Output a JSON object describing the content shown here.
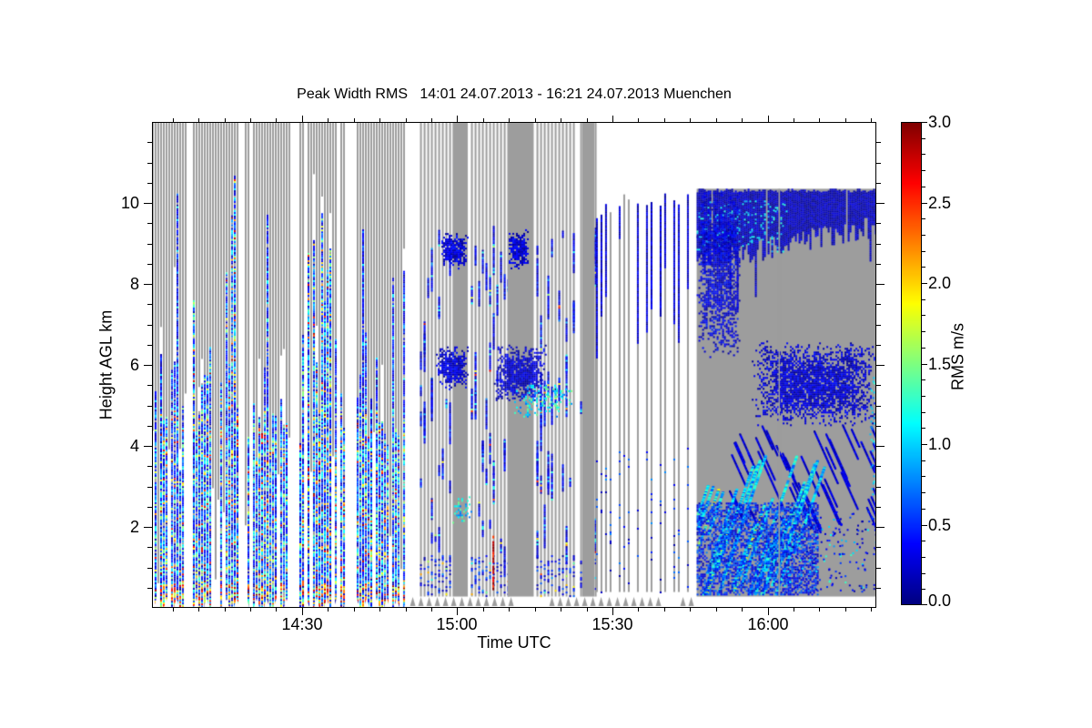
{
  "chart_data": {
    "type": "heatmap",
    "title": "Peak Width RMS   14:01 24.07.2013 - 16:21 24.07.2013 Muenchen",
    "xlabel": "Time UTC",
    "ylabel": "Height AGL km",
    "x_axis": {
      "start": "14:01",
      "end": "16:21",
      "total_minutes": 140,
      "tick_labels": [
        "14:30",
        "15:00",
        "15:30",
        "16:00"
      ],
      "tick_minutes_from_start": [
        29,
        59,
        89,
        119
      ],
      "minor_tick_step_minutes": 5
    },
    "y_axis": {
      "min_km": 0,
      "max_km": 12,
      "tick_labels": [
        "2",
        "4",
        "6",
        "8",
        "10"
      ],
      "tick_values_km": [
        2,
        4,
        6,
        8,
        10
      ],
      "minor_tick_step_km": 0.5
    },
    "colorbar": {
      "label": "RMS m/s",
      "min": 0.0,
      "max": 3.0,
      "tick_labels": [
        "0.0",
        "0.5",
        "1.0",
        "1.5",
        "2.0",
        "2.5",
        "3.0"
      ],
      "tick_values": [
        0,
        0.5,
        1,
        1.5,
        2,
        2.5,
        3
      ],
      "minor_tick_step": 0.1,
      "colormap": "jet"
    },
    "colors": {
      "no_data_gray": "#9d9d9d",
      "background": "#ffffff",
      "axis": "#000000",
      "low_value_blue": "#0000a0",
      "high_value_red": "#8b0000"
    },
    "field": {
      "seed": 1337,
      "zones": [
        {
          "name": "mixed-turbulence-columns",
          "t": [
            0.0,
            0.355
          ],
          "top_km": 12,
          "data_top_km": [
            3.2,
            7.2
          ],
          "tall_top_km": [
            7.5,
            10.7
          ],
          "colorful_tall_t": [
            [
              0.053,
              0.119
            ],
            [
              0.186,
              0.251
            ]
          ]
        },
        {
          "name": "gray-with-sparse-blue-columns",
          "t": [
            0.355,
            0.613
          ],
          "top_km": 12
        },
        {
          "name": "short-gray-columns",
          "t": [
            0.613,
            0.752
          ],
          "top_km": 10.35
        },
        {
          "name": "solid-cloud-field",
          "t": [
            0.752,
            1.0
          ],
          "top_km": 10.35
        }
      ],
      "white_gaps_t": [
        [
          0.048,
          0.055
        ],
        [
          0.119,
          0.128
        ],
        [
          0.191,
          0.2
        ],
        [
          0.268,
          0.28
        ],
        [
          0.347,
          0.359
        ]
      ],
      "solid_gray_bands_t": [
        [
          0.415,
          0.436
        ],
        [
          0.491,
          0.527
        ],
        [
          0.594,
          0.611
        ]
      ],
      "cloud_blobs": [
        {
          "t": [
            0.397,
            0.435
          ],
          "km": [
            8.4,
            9.3
          ]
        },
        {
          "t": [
            0.49,
            0.52
          ],
          "km": [
            8.4,
            9.35
          ]
        },
        {
          "t": [
            0.392,
            0.437
          ],
          "km": [
            5.4,
            6.5
          ]
        },
        {
          "t": [
            0.472,
            0.543
          ],
          "km": [
            5.1,
            6.5
          ]
        }
      ],
      "cyan_patches": [
        {
          "t": [
            0.5,
            0.58
          ],
          "km": [
            4.7,
            5.6
          ]
        },
        {
          "t": [
            0.412,
            0.442
          ],
          "km": [
            2.1,
            2.8
          ]
        }
      ],
      "hot_streak": {
        "t": 0.47,
        "km": [
          0.5,
          1.85
        ]
      },
      "right_field": {
        "top_cloud_km": [
          8.6,
          10.35
        ],
        "left_lobe": {
          "t": [
            0.752,
            0.812
          ],
          "km": [
            6.2,
            10.35
          ]
        },
        "mid_mass": {
          "t": [
            0.828,
            1.0
          ],
          "km": [
            4.5,
            6.6
          ]
        },
        "streaks": {
          "t": [
            0.752,
            0.93
          ],
          "km": [
            0.3,
            3.8
          ]
        },
        "thin_gray_line_t": 0.865
      },
      "ground_marks": {
        "spacing_px": 10,
        "end_t": 0.752
      }
    }
  }
}
